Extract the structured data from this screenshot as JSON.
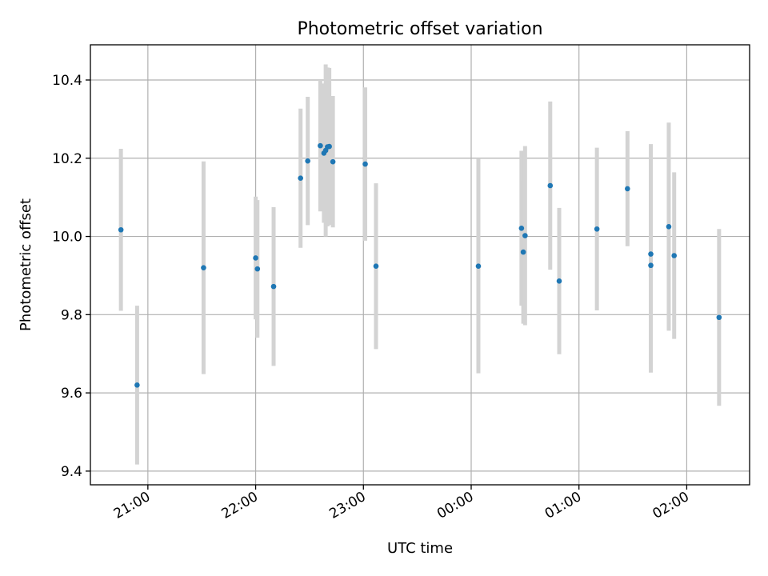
{
  "chart_data": {
    "type": "scatter",
    "title": "Photometric offset variation",
    "xlabel": "UTC time",
    "ylabel": "Photometric offset",
    "x_tick_labels": [
      "21:00",
      "22:00",
      "23:00",
      "00:00",
      "01:00",
      "02:00"
    ],
    "x_ticks": [
      "21:00",
      "22:00",
      "23:00",
      "00:00",
      "01:00",
      "02:00"
    ],
    "xlim": [
      "20:28",
      "02:35"
    ],
    "ylim": [
      9.365,
      10.49
    ],
    "y_ticks": [
      9.4,
      9.6,
      9.8,
      10.0,
      10.2,
      10.4
    ],
    "y_tick_labels": [
      "9.4",
      "9.6",
      "9.8",
      "10.0",
      "10.2",
      "10.4"
    ],
    "grid": true,
    "point_color": "#1f77b4",
    "errorbar_color": "#d3d3d3",
    "points": [
      {
        "x": "20:45",
        "y": 10.017,
        "err": 0.207
      },
      {
        "x": "20:54",
        "y": 9.62,
        "err": 0.203
      },
      {
        "x": "21:31",
        "y": 9.92,
        "err": 0.272
      },
      {
        "x": "22:00",
        "y": 9.945,
        "err": 0.157
      },
      {
        "x": "22:01",
        "y": 9.917,
        "err": 0.176
      },
      {
        "x": "22:10",
        "y": 9.872,
        "err": 0.203
      },
      {
        "x": "22:25",
        "y": 10.149,
        "err": 0.178
      },
      {
        "x": "22:29",
        "y": 10.193,
        "err": 0.164
      },
      {
        "x": "22:36",
        "y": 10.232,
        "err": 0.168
      },
      {
        "x": "22:38",
        "y": 10.213,
        "err": 0.178
      },
      {
        "x": "22:39",
        "y": 10.22,
        "err": 0.22
      },
      {
        "x": "22:40",
        "y": 10.229,
        "err": 0.203
      },
      {
        "x": "22:41",
        "y": 10.23,
        "err": 0.201
      },
      {
        "x": "22:43",
        "y": 10.191,
        "err": 0.168
      },
      {
        "x": "23:01",
        "y": 10.185,
        "err": 0.196
      },
      {
        "x": "23:07",
        "y": 9.924,
        "err": 0.212
      },
      {
        "x": "00:04",
        "y": 9.924,
        "err": 0.274
      },
      {
        "x": "00:28",
        "y": 10.021,
        "err": 0.198
      },
      {
        "x": "00:29",
        "y": 9.96,
        "err": 0.183
      },
      {
        "x": "00:30",
        "y": 10.002,
        "err": 0.229
      },
      {
        "x": "00:44",
        "y": 10.13,
        "err": 0.215
      },
      {
        "x": "00:49",
        "y": 9.886,
        "err": 0.187
      },
      {
        "x": "01:10",
        "y": 10.019,
        "err": 0.208
      },
      {
        "x": "01:27",
        "y": 10.122,
        "err": 0.147
      },
      {
        "x": "01:40",
        "y": 9.955,
        "err": 0.281
      },
      {
        "x": "01:40",
        "y": 9.926,
        "err": 0.274
      },
      {
        "x": "01:50",
        "y": 10.025,
        "err": 0.266
      },
      {
        "x": "01:53",
        "y": 9.951,
        "err": 0.213
      },
      {
        "x": "02:18",
        "y": 9.793,
        "err": 0.226
      }
    ]
  }
}
